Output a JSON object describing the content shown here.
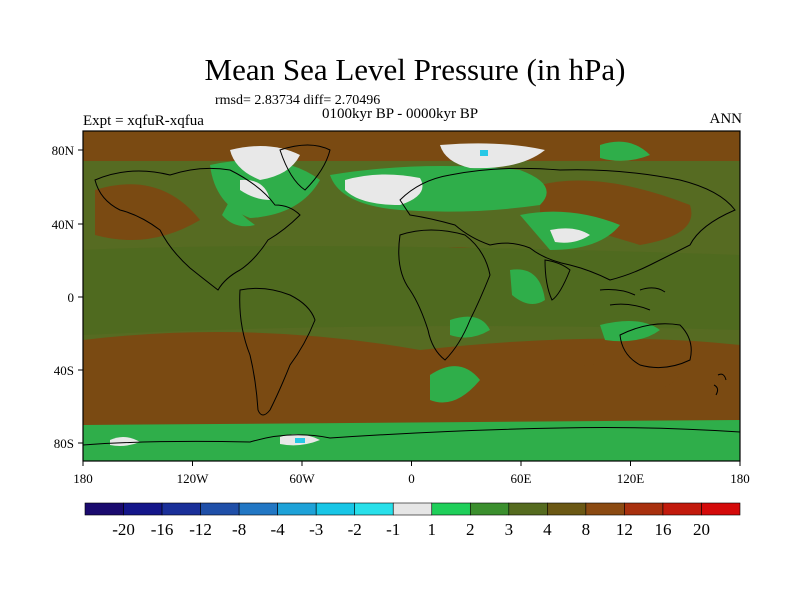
{
  "figure": {
    "title": "Mean Sea Level Pressure (in hPa)",
    "stats": "rmsd= 2.83734  diff= 2.70496",
    "period": "0100kyr BP - 0000kyr BP",
    "experiment": "Expt = xqfuR-xqfua",
    "season": "ANN"
  },
  "axes": {
    "x_ticks": [
      "180",
      "120W",
      "60W",
      "0",
      "60E",
      "120E",
      "180"
    ],
    "y_ticks": [
      "80N",
      "40N",
      "0",
      "40S",
      "80S"
    ]
  },
  "colorbar": {
    "labels": [
      "-20",
      "-16",
      "-12",
      "-8",
      "-4",
      "-3",
      "-2",
      "-1",
      "1",
      "2",
      "3",
      "4",
      "8",
      "12",
      "16",
      "20"
    ],
    "colors": [
      "#1a0a6e",
      "#14168a",
      "#1a2f99",
      "#1f4fa8",
      "#2277c4",
      "#1ea2d8",
      "#18c6e6",
      "#28e0ea",
      "#e6e6e6",
      "#1fcf5a",
      "#3b8f2e",
      "#556b1f",
      "#6b5814",
      "#8b4a12",
      "#a8300e",
      "#c21a0c",
      "#d40a0a"
    ]
  },
  "colors": {
    "land_outline": "#000000",
    "background_field": "#566b22",
    "negative_field": "#2fae4a",
    "positive_field": "#7a4a12",
    "near_zero": "#e8e8e8"
  }
}
